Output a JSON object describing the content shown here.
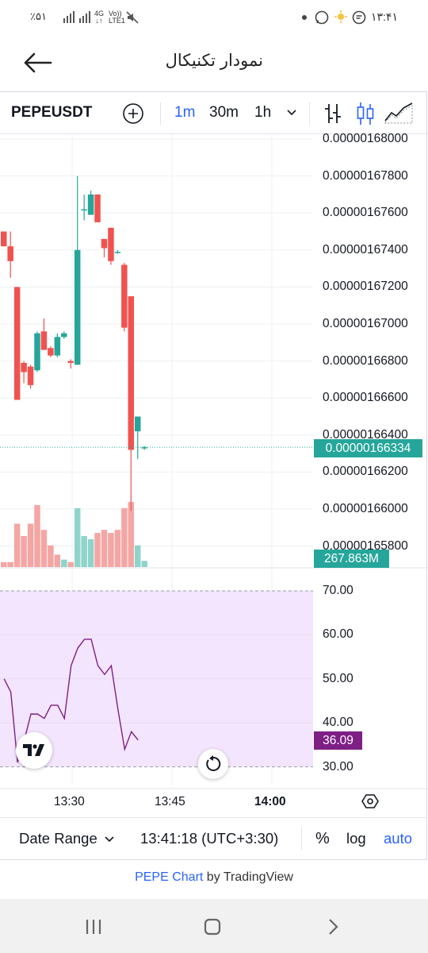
{
  "status": {
    "battery": "٪۵۱",
    "network_top": "4G",
    "network_bottom": "↓↑",
    "volte_top": "Vo))",
    "volte_bottom": "LTE1",
    "time": "۱۳:۴۱"
  },
  "header": {
    "title": "نمودار تکنیکال"
  },
  "toolbar": {
    "symbol": "PEPEUSDT",
    "intervals": [
      "1m",
      "30m",
      "1h"
    ],
    "active_interval": "1m",
    "colors": {
      "active": "#2962ff",
      "text": "#131722"
    }
  },
  "chart": {
    "last_price_label": "0.00000166334",
    "volume_label": "267.863M",
    "rsi_label": "36.09",
    "time_ticks": [
      "13:30",
      "13:45",
      "14:00"
    ],
    "colors": {
      "up": "#26a69a",
      "down": "#ef5350",
      "up_vol": "#8fd4cb",
      "down_vol": "#f4a6a4",
      "rsi_line": "#7e1f86",
      "rsi_fill": "#f3e5fd",
      "last_price_bg": "#26a69a",
      "rsi_label_bg": "#7e1f86"
    }
  },
  "chart_data": [
    {
      "type": "candlestick",
      "title": "",
      "y_ticks": [
        "0.00000168000",
        "0.00000167800",
        "0.00000167600",
        "0.00000167400",
        "0.00000167200",
        "0.00000167000",
        "0.00000166800",
        "0.00000166600",
        "0.00000166400",
        "0.00000166200",
        "0.00000166000",
        "0.00000165800"
      ],
      "ylim": [
        1.65765e-06,
        1.68015e-06
      ],
      "x_ticks": [
        "13:30",
        "13:45",
        "14:00"
      ],
      "last_price": 1.66334e-06,
      "candles": [
        {
          "o": 1.675e-06,
          "h": 1.675e-06,
          "l": 1.6742e-06,
          "c": 1.6742e-06
        },
        {
          "o": 1.6742e-06,
          "h": 1.675e-06,
          "l": 1.6725e-06,
          "c": 1.6734e-06
        },
        {
          "o": 1.672e-06,
          "h": 1.672e-06,
          "l": 1.6659e-06,
          "c": 1.6659e-06
        },
        {
          "o": 1.6679e-06,
          "h": 1.668e-06,
          "l": 1.6668e-06,
          "c": 1.6674e-06
        },
        {
          "o": 1.6677e-06,
          "h": 1.6678e-06,
          "l": 1.6665e-06,
          "c": 1.6667e-06
        },
        {
          "o": 1.6675e-06,
          "h": 1.6696e-06,
          "l": 1.6674e-06,
          "c": 1.6695e-06
        },
        {
          "o": 1.6696e-06,
          "h": 1.6703e-06,
          "l": 1.6688e-06,
          "c": 1.6686e-06
        },
        {
          "o": 1.6687e-06,
          "h": 1.6688e-06,
          "l": 1.6682e-06,
          "c": 1.6683e-06
        },
        {
          "o": 1.6683e-06,
          "h": 1.6695e-06,
          "l": 1.6682e-06,
          "c": 1.6693e-06
        },
        {
          "o": 1.6693e-06,
          "h": 1.6696e-06,
          "l": 1.6692e-06,
          "c": 1.6695e-06
        },
        {
          "o": 1.668e-06,
          "h": 1.6681e-06,
          "l": 1.6676e-06,
          "c": 1.6679e-06
        },
        {
          "o": 1.6678e-06,
          "h": 1.678e-06,
          "l": 1.6678e-06,
          "c": 1.674e-06
        },
        {
          "o": 1.6762e-06,
          "h": 1.677e-06,
          "l": 1.6756e-06,
          "c": 1.6762e-06
        },
        {
          "o": 1.6759e-06,
          "h": 1.6772e-06,
          "l": 1.6759e-06,
          "c": 1.677e-06
        },
        {
          "o": 1.677e-06,
          "h": 1.677e-06,
          "l": 1.6755e-06,
          "c": 1.6755e-06
        },
        {
          "o": 1.6746e-06,
          "h": 1.6746e-06,
          "l": 1.6736e-06,
          "c": 1.6741e-06
        },
        {
          "o": 1.6752e-06,
          "h": 1.6752e-06,
          "l": 1.6732e-06,
          "c": 1.6734e-06
        },
        {
          "o": 1.6739e-06,
          "h": 1.674e-06,
          "l": 1.6738e-06,
          "c": 1.6739e-06
        },
        {
          "o": 1.6732e-06,
          "h": 1.6733e-06,
          "l": 1.6696e-06,
          "c": 1.6698e-06
        },
        {
          "o": 1.6715e-06,
          "h": 1.6715e-06,
          "l": 1.6599e-06,
          "c": 1.6632e-06
        },
        {
          "o": 1.6642e-06,
          "h": 1.665e-06,
          "l": 1.6627e-06,
          "c": 1.665e-06
        },
        {
          "o": 1.6633e-06,
          "h": 1.6634e-06,
          "l": 1.6632e-06,
          "c": 1.66334e-06
        }
      ]
    },
    {
      "type": "bar",
      "title": "",
      "name": "volume",
      "last_value": "267.863M",
      "values_relative": [
        0.08,
        0.08,
        0.7,
        0.5,
        0.7,
        1.0,
        0.6,
        0.35,
        0.2,
        0.12,
        0.08,
        0.95,
        0.5,
        0.45,
        0.55,
        0.6,
        0.55,
        0.6,
        0.95,
        1.05,
        0.35,
        0.1
      ],
      "directions": [
        "down",
        "down",
        "down",
        "down",
        "down",
        "down",
        "down",
        "down",
        "down",
        "up",
        "down",
        "up",
        "up",
        "up",
        "down",
        "down",
        "down",
        "down",
        "down",
        "down",
        "up",
        "up"
      ]
    },
    {
      "type": "line",
      "title": "",
      "name": "RSI",
      "y_ticks": [
        "70.00",
        "60.00",
        "50.00",
        "40.00",
        "30.00"
      ],
      "ylim": [
        28,
        72.5
      ],
      "band": [
        30,
        70
      ],
      "last_value": 36.09,
      "values": [
        50,
        47,
        31,
        36,
        42,
        42,
        41,
        44,
        44,
        41,
        53,
        57,
        59,
        59,
        53,
        51,
        53,
        43,
        34,
        38,
        36.09
      ]
    }
  ],
  "bottombar": {
    "date_range": "Date Range",
    "clock": "13:41:18 (UTC+3:30)",
    "percent": "%",
    "log": "log",
    "auto": "auto"
  },
  "credit": {
    "link": "PEPE Chart",
    "suffix": "by TradingView"
  },
  "icons": [
    "back-arrow-icon",
    "add-symbol-icon",
    "chevron-down-icon",
    "bars-icon",
    "candles-icon",
    "area-icon",
    "tradingview-logo-icon",
    "reset-icon",
    "settings-icon",
    "recents-icon",
    "home-icon",
    "back-nav-icon"
  ]
}
